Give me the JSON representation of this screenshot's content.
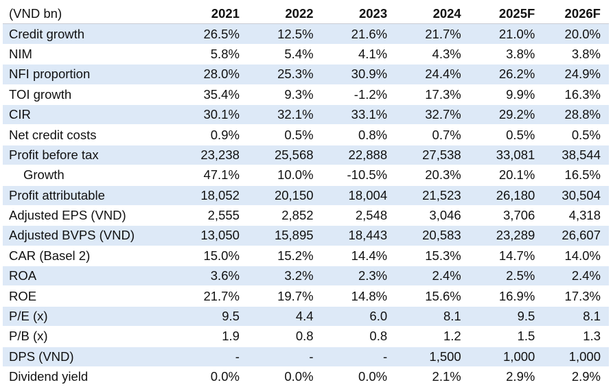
{
  "table": {
    "unit_label": "(VND bn)",
    "years": [
      "2021",
      "2022",
      "2023",
      "2024",
      "2025F",
      "2026F"
    ],
    "rows": [
      {
        "label": "Credit growth",
        "indent": false,
        "shaded": true,
        "values": [
          "26.5%",
          "12.5%",
          "21.6%",
          "21.7%",
          "21.0%",
          "20.0%"
        ]
      },
      {
        "label": "NIM",
        "indent": false,
        "shaded": false,
        "values": [
          "5.8%",
          "5.4%",
          "4.1%",
          "4.3%",
          "3.8%",
          "3.8%"
        ]
      },
      {
        "label": "NFI proportion",
        "indent": false,
        "shaded": true,
        "values": [
          "28.0%",
          "25.3%",
          "30.9%",
          "24.4%",
          "26.2%",
          "24.9%"
        ]
      },
      {
        "label": "TOI growth",
        "indent": false,
        "shaded": false,
        "values": [
          "35.4%",
          "9.3%",
          "-1.2%",
          "17.3%",
          "9.9%",
          "16.3%"
        ]
      },
      {
        "label": "CIR",
        "indent": false,
        "shaded": true,
        "values": [
          "30.1%",
          "32.1%",
          "33.1%",
          "32.7%",
          "29.2%",
          "28.8%"
        ]
      },
      {
        "label": "Net credit costs",
        "indent": false,
        "shaded": false,
        "values": [
          "0.9%",
          "0.5%",
          "0.8%",
          "0.7%",
          "0.5%",
          "0.5%"
        ]
      },
      {
        "label": "Profit before tax",
        "indent": false,
        "shaded": true,
        "values": [
          "23,238",
          "25,568",
          "22,888",
          "27,538",
          "33,081",
          "38,544"
        ]
      },
      {
        "label": "Growth",
        "indent": true,
        "shaded": false,
        "values": [
          "47.1%",
          "10.0%",
          "-10.5%",
          "20.3%",
          "20.1%",
          "16.5%"
        ]
      },
      {
        "label": "Profit attributable",
        "indent": false,
        "shaded": true,
        "values": [
          "18,052",
          "20,150",
          "18,004",
          "21,523",
          "26,180",
          "30,504"
        ]
      },
      {
        "label": "Adjusted EPS (VND)",
        "indent": false,
        "shaded": false,
        "values": [
          "2,555",
          "2,852",
          "2,548",
          "3,046",
          "3,706",
          "4,318"
        ]
      },
      {
        "label": "Adjusted BVPS (VND)",
        "indent": false,
        "shaded": true,
        "values": [
          "13,050",
          "15,895",
          "18,443",
          "20,583",
          "23,289",
          "26,607"
        ]
      },
      {
        "label": "CAR (Basel 2)",
        "indent": false,
        "shaded": false,
        "values": [
          "15.0%",
          "15.2%",
          "14.4%",
          "15.3%",
          "14.7%",
          "14.0%"
        ]
      },
      {
        "label": "ROA",
        "indent": false,
        "shaded": true,
        "values": [
          "3.6%",
          "3.2%",
          "2.3%",
          "2.4%",
          "2.5%",
          "2.4%"
        ]
      },
      {
        "label": "ROE",
        "indent": false,
        "shaded": false,
        "values": [
          "21.7%",
          "19.7%",
          "14.8%",
          "15.6%",
          "16.9%",
          "17.3%"
        ]
      },
      {
        "label": "P/E (x)",
        "indent": false,
        "shaded": true,
        "values": [
          "9.5",
          "4.4",
          "6.0",
          "8.1",
          "9.5",
          "8.1"
        ]
      },
      {
        "label": "P/B (x)",
        "indent": false,
        "shaded": false,
        "values": [
          "1.9",
          "0.8",
          "0.8",
          "1.2",
          "1.5",
          "1.3"
        ]
      },
      {
        "label": "DPS (VND)",
        "indent": false,
        "shaded": true,
        "values": [
          "-",
          "-",
          "-",
          "1,500",
          "1,000",
          "1,000"
        ]
      },
      {
        "label": "Dividend yield",
        "indent": false,
        "shaded": false,
        "values": [
          "0.0%",
          "0.0%",
          "0.0%",
          "2.1%",
          "2.9%",
          "2.9%"
        ]
      }
    ]
  }
}
